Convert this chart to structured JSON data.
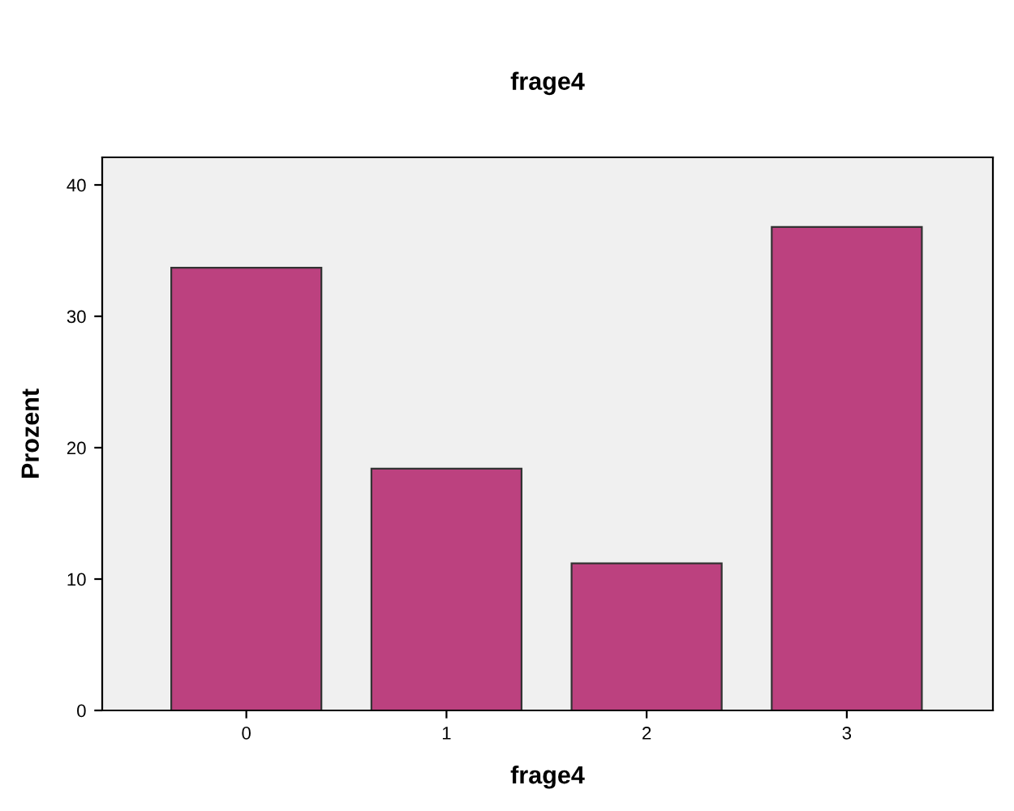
{
  "chart_data": {
    "type": "bar",
    "title": "frage4",
    "xlabel": "frage4",
    "ylabel": "Prozent",
    "categories": [
      "0",
      "1",
      "2",
      "3"
    ],
    "values": [
      33.7,
      18.4,
      11.2,
      36.8
    ],
    "color": "#bc417f",
    "ylim": [
      0,
      42.1
    ],
    "yticks": [
      0,
      10,
      20,
      30,
      40
    ],
    "grid": false
  }
}
